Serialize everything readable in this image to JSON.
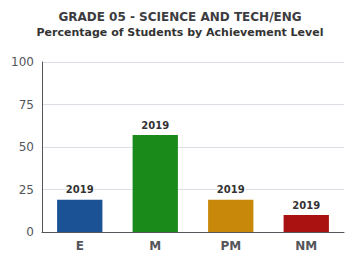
{
  "chart_data": {
    "type": "bar",
    "title": "GRADE 05 - SCIENCE AND TECH/ENG",
    "subtitle": "Percentage of Students by Achievement Level",
    "categories": [
      "E",
      "M",
      "PM",
      "NM"
    ],
    "values": [
      19,
      57,
      19,
      10
    ],
    "colors": [
      "#1a5295",
      "#1a8a1a",
      "#c8880a",
      "#aa1111"
    ],
    "annotations": [
      "2019",
      "2019",
      "2019",
      "2019"
    ],
    "ylim": [
      0,
      100
    ],
    "yticks": [
      0,
      25,
      50,
      75,
      100
    ],
    "grid": true
  }
}
